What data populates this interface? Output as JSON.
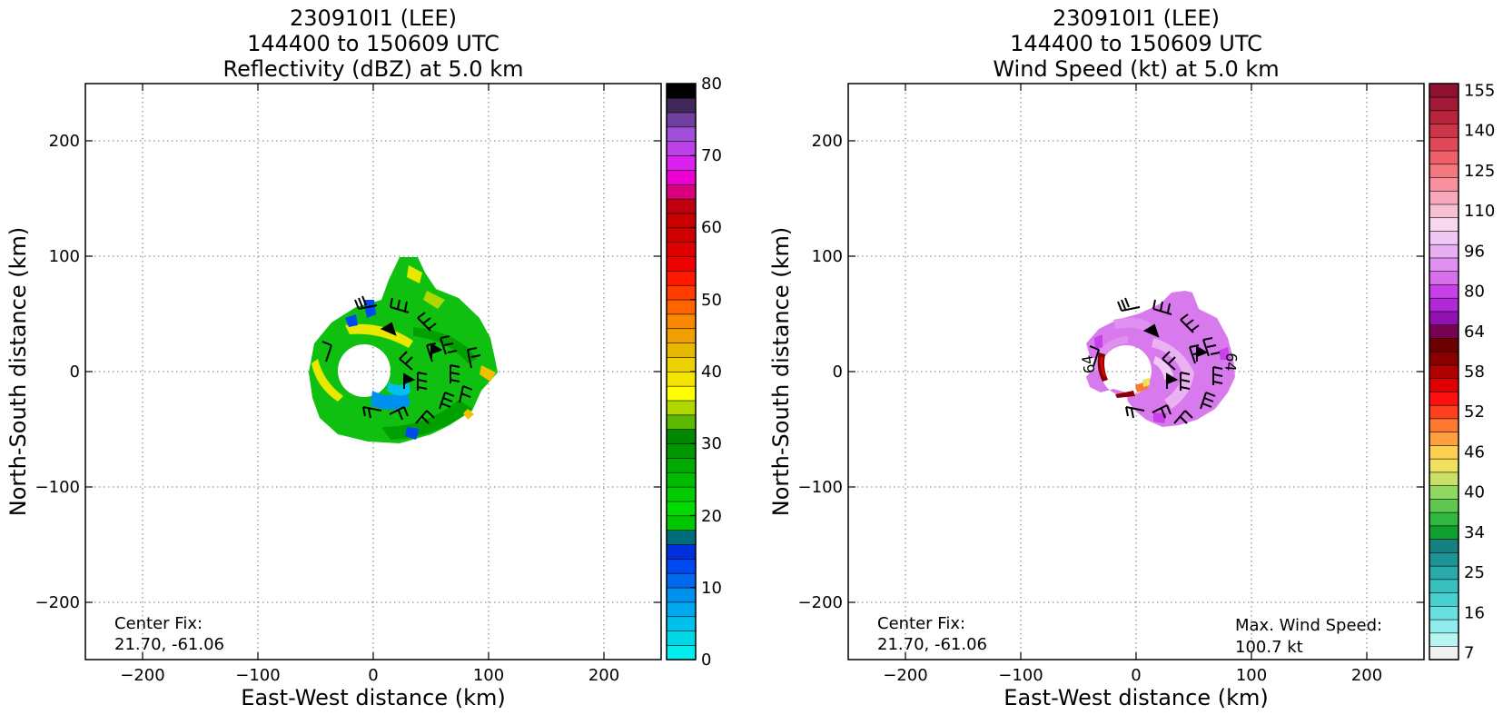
{
  "chart_data": [
    {
      "type": "heatmap",
      "title_lines": [
        "230910I1 (LEE)",
        "144400 to 150609 UTC",
        "Reflectivity (dBZ) at 5.0 km"
      ],
      "xlabel": "East-West distance (km)",
      "ylabel": "North-South distance (km)",
      "xlim": [
        -250,
        250
      ],
      "ylim": [
        -250,
        250
      ],
      "xticks": [
        -200,
        -100,
        0,
        100,
        200
      ],
      "yticks": [
        -200,
        -100,
        0,
        100,
        200
      ],
      "xtick_labels": [
        "−200",
        "−100",
        "0",
        "100",
        "200"
      ],
      "ytick_labels": [
        "−200",
        "−100",
        "0",
        "100",
        "200"
      ],
      "grid": true,
      "annotations": [
        {
          "lines": [
            "Center Fix:",
            "21.70, -61.06"
          ],
          "position": "bottom-left"
        }
      ],
      "colorbar": {
        "range": [
          0,
          80
        ],
        "ticks": [
          0,
          10,
          20,
          30,
          40,
          50,
          60,
          70,
          80
        ],
        "colors": [
          "#00eeee",
          "#00d8e8",
          "#00c0ee",
          "#00a8ef",
          "#0090ef",
          "#0068ef",
          "#0048ef",
          "#0030dd",
          "#006e7a",
          "#00c800",
          "#00dc00",
          "#00cc00",
          "#00bc00",
          "#00aa00",
          "#009800",
          "#008800",
          "#5cb800",
          "#b0d800",
          "#ffff00",
          "#f4e400",
          "#ecd000",
          "#e8b800",
          "#f0a000",
          "#f88800",
          "#ff6400",
          "#ff3c00",
          "#ff1800",
          "#f00000",
          "#e00000",
          "#d00000",
          "#c80000",
          "#c00010",
          "#d8007c",
          "#ec00d4",
          "#dc20f0",
          "#bc40e8",
          "#a050d8",
          "#7040a0",
          "#402858",
          "#000000"
        ]
      },
      "echo_region": {
        "center_km": [
          8,
          0
        ],
        "eye_radius_km": 22,
        "max_extent": "north ~98 km, east ~110 km, south ~-62 km, west ~-52 km",
        "dominant_dbz": "20-30",
        "peak_dbz": "35-45"
      },
      "wind_barbs": true
    },
    {
      "type": "heatmap",
      "title_lines": [
        "230910I1 (LEE)",
        "144400 to 150609 UTC",
        "Wind Speed (kt) at 5.0 km"
      ],
      "xlabel": "East-West distance (km)",
      "ylabel": "North-South distance (km)",
      "xlim": [
        -250,
        250
      ],
      "ylim": [
        -250,
        250
      ],
      "xticks": [
        -200,
        -100,
        0,
        100,
        200
      ],
      "yticks": [
        -200,
        -100,
        0,
        100,
        200
      ],
      "xtick_labels": [
        "−200",
        "−100",
        "0",
        "100",
        "200"
      ],
      "ytick_labels": [
        "−200",
        "−100",
        "0",
        "100",
        "200"
      ],
      "grid": true,
      "annotations": [
        {
          "lines": [
            "Center Fix:",
            "21.70, -61.06"
          ],
          "position": "bottom-left"
        },
        {
          "lines": [
            "Max. Wind Speed:",
            "100.7 kt"
          ],
          "position": "bottom-right"
        }
      ],
      "contour_labels": [
        "64",
        "64"
      ],
      "colorbar": {
        "tick_labels": [
          "7",
          "16",
          "25",
          "34",
          "40",
          "46",
          "52",
          "58",
          "64",
          "80",
          "96",
          "110",
          "125",
          "140",
          "155"
        ],
        "colors": [
          "#f0f0f0",
          "#b8f4f0",
          "#90ecec",
          "#68e0e0",
          "#48d0d0",
          "#38c0c0",
          "#28aaaa",
          "#1a9494",
          "#168080",
          "#10a030",
          "#30b840",
          "#60c850",
          "#90d860",
          "#c8e068",
          "#f0e060",
          "#ffd050",
          "#ffa040",
          "#ff7830",
          "#ff4020",
          "#ff1010",
          "#e00000",
          "#b00000",
          "#880000",
          "#6e0000",
          "#780050",
          "#9010b0",
          "#b028d8",
          "#c840e8",
          "#d870ee",
          "#e090f0",
          "#e8b0f2",
          "#f0c8f4",
          "#f8d8ec",
          "#f8c0d4",
          "#f8a8bc",
          "#f890a0",
          "#f47880",
          "#ee6068",
          "#e04858",
          "#cc3448",
          "#b8243c",
          "#a41838",
          "#901032"
        ]
      },
      "wind_region": {
        "center_km": [
          8,
          0
        ],
        "eye_radius_km": 22,
        "dominant_kt": "80-110",
        "max_kt": 100.7
      },
      "wind_barbs": true
    }
  ]
}
